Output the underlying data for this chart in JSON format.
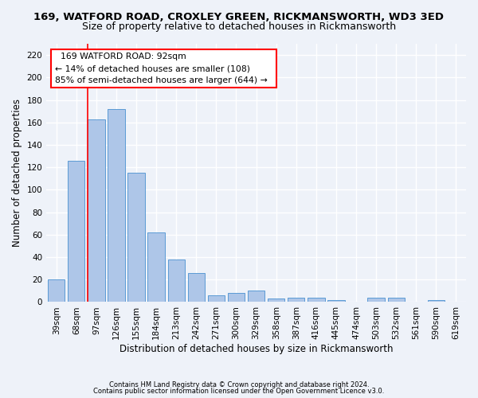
{
  "title": "169, WATFORD ROAD, CROXLEY GREEN, RICKMANSWORTH, WD3 3ED",
  "subtitle": "Size of property relative to detached houses in Rickmansworth",
  "xlabel": "Distribution of detached houses by size in Rickmansworth",
  "ylabel": "Number of detached properties",
  "categories": [
    "39sqm",
    "68sqm",
    "97sqm",
    "126sqm",
    "155sqm",
    "184sqm",
    "213sqm",
    "242sqm",
    "271sqm",
    "300sqm",
    "329sqm",
    "358sqm",
    "387sqm",
    "416sqm",
    "445sqm",
    "474sqm",
    "503sqm",
    "532sqm",
    "561sqm",
    "590sqm",
    "619sqm"
  ],
  "values": [
    20,
    126,
    163,
    172,
    115,
    62,
    38,
    26,
    6,
    8,
    10,
    3,
    4,
    4,
    2,
    0,
    4,
    4,
    0,
    2,
    0
  ],
  "bar_color": "#aec6e8",
  "bar_edge_color": "#5b9bd5",
  "red_line_bar_index": 2,
  "annotation_title": "169 WATFORD ROAD: 92sqm",
  "annotation_line1": "← 14% of detached houses are smaller (108)",
  "annotation_line2": "85% of semi-detached houses are larger (644) →",
  "footer1": "Contains HM Land Registry data © Crown copyright and database right 2024.",
  "footer2": "Contains public sector information licensed under the Open Government Licence v3.0.",
  "ylim": [
    0,
    230
  ],
  "yticks": [
    0,
    20,
    40,
    60,
    80,
    100,
    120,
    140,
    160,
    180,
    200,
    220
  ],
  "background_color": "#eef2f9",
  "grid_color": "#ffffff",
  "title_fontsize": 9.5,
  "subtitle_fontsize": 9,
  "axis_label_fontsize": 8.5,
  "tick_fontsize": 7.5,
  "annotation_fontsize": 7.8
}
